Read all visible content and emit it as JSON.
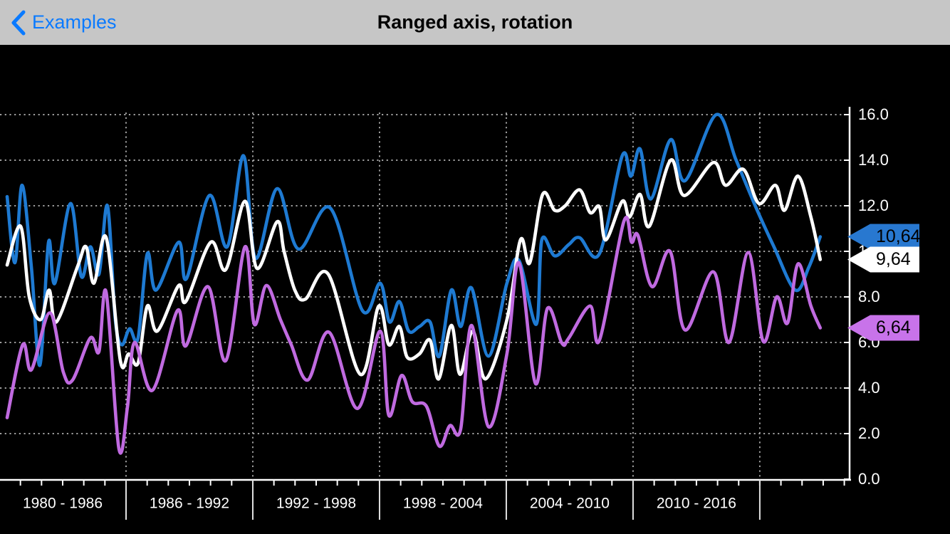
{
  "nav": {
    "back_label": "Examples",
    "title": "Ranged axis, rotation"
  },
  "colors": {
    "nav_background": "#c6c6c6",
    "nav_accent_blue": "#0a7aff",
    "nav_title_color": "#000000",
    "chart_background": "#000000",
    "gridline": "#b5b5b5",
    "axis_line": "#ffffff",
    "axis_text": "#ffffff",
    "band_separator": "#e0e0e0",
    "marker_text": "#000000",
    "series_blue": "#1e7ad2",
    "series_white": "#ffffff",
    "series_purple": "#c06ae0",
    "marker_blue_fill": "#2878d0",
    "marker_white_fill": "#ffffff",
    "marker_purple_fill": "#c873ea"
  },
  "chart_data": {
    "type": "line",
    "title": "",
    "xlabel": "",
    "ylabel": "",
    "grid": true,
    "legend_position": "none",
    "x_axis": {
      "range": [
        1980,
        2020.25
      ],
      "band_boundaries": [
        1986,
        1992,
        1998,
        2004,
        2010,
        2016
      ],
      "band_labels": [
        "1980 - 1986",
        "1986 - 1992",
        "1992 - 1998",
        "1998 - 2004",
        "2004 - 2010",
        "2010 - 2016"
      ],
      "band_label_years": [
        1983,
        1989,
        1995,
        2001,
        2007,
        2013
      ],
      "minor_tick_step_years": 1
    },
    "y_axis": {
      "range": [
        0,
        16
      ],
      "tick_step": 2,
      "tick_labels": [
        "16.0",
        "14.0",
        "12.0",
        "10.0",
        "8.0",
        "6.0",
        "4.0",
        "2.0",
        "0.0"
      ],
      "tick_values": [
        16,
        14,
        12,
        10,
        8,
        6,
        4,
        2,
        0
      ],
      "side": "right"
    },
    "annotations": [
      {
        "series": "blue",
        "label": "10,64",
        "value": 10.64
      },
      {
        "series": "white",
        "label": "9,64",
        "value": 9.64
      },
      {
        "series": "purple",
        "label": "6,64",
        "value": 6.64
      }
    ],
    "series": [
      {
        "name": "blue",
        "points": [
          [
            1980.37,
            12.4
          ],
          [
            1980.74,
            9.5
          ],
          [
            1981.08,
            12.9
          ],
          [
            1981.52,
            9.3
          ],
          [
            1981.92,
            5.0
          ],
          [
            1982.33,
            10.4
          ],
          [
            1982.63,
            8.6
          ],
          [
            1983.37,
            12.1
          ],
          [
            1983.88,
            8.9
          ],
          [
            1984.31,
            10.2
          ],
          [
            1984.72,
            9.0
          ],
          [
            1985.12,
            12.0
          ],
          [
            1985.49,
            7.0
          ],
          [
            1985.8,
            5.9
          ],
          [
            1986.17,
            6.6
          ],
          [
            1986.57,
            6.2
          ],
          [
            1987.01,
            9.9
          ],
          [
            1987.42,
            8.3
          ],
          [
            1988.49,
            10.4
          ],
          [
            1988.86,
            8.8
          ],
          [
            1989.94,
            12.45
          ],
          [
            1990.79,
            10.2
          ],
          [
            1991.56,
            14.2
          ],
          [
            1992.13,
            9.7
          ],
          [
            1993.15,
            12.75
          ],
          [
            1994.16,
            10.1
          ],
          [
            1995.67,
            11.9
          ],
          [
            1997.19,
            7.4
          ],
          [
            1998.03,
            8.6
          ],
          [
            1998.47,
            6.9
          ],
          [
            1998.94,
            7.8
          ],
          [
            1999.38,
            6.5
          ],
          [
            1999.89,
            6.7
          ],
          [
            2000.39,
            6.9
          ],
          [
            2000.83,
            5.4
          ],
          [
            2001.4,
            8.3
          ],
          [
            2001.84,
            6.7
          ],
          [
            2002.35,
            8.4
          ],
          [
            2003.16,
            5.4
          ],
          [
            2004.03,
            8.6
          ],
          [
            2004.6,
            9.6
          ],
          [
            2005.42,
            6.8
          ],
          [
            2005.68,
            10.5
          ],
          [
            2006.29,
            9.8
          ],
          [
            2006.96,
            10.3
          ],
          [
            2007.47,
            10.6
          ],
          [
            2008.41,
            9.9
          ],
          [
            2009.49,
            14.2
          ],
          [
            2009.9,
            13.3
          ],
          [
            2010.33,
            14.5
          ],
          [
            2010.84,
            12.3
          ],
          [
            2011.78,
            14.9
          ],
          [
            2012.46,
            13.1
          ],
          [
            2013.94,
            16.0
          ],
          [
            2014.88,
            14.0
          ],
          [
            2015.83,
            11.9
          ],
          [
            2016.67,
            10.2
          ],
          [
            2017.68,
            8.3
          ],
          [
            2018.32,
            9.3
          ],
          [
            2018.86,
            10.64
          ]
        ]
      },
      {
        "name": "white",
        "points": [
          [
            1980.37,
            9.4
          ],
          [
            1981.01,
            11.1
          ],
          [
            1981.42,
            8.0
          ],
          [
            1981.96,
            7.0
          ],
          [
            1982.36,
            8.3
          ],
          [
            1982.7,
            6.9
          ],
          [
            1983.71,
            9.35
          ],
          [
            1984.11,
            10.2
          ],
          [
            1984.48,
            8.6
          ],
          [
            1985.06,
            10.6
          ],
          [
            1985.73,
            5.2
          ],
          [
            1986.13,
            5.5
          ],
          [
            1986.57,
            5.1
          ],
          [
            1987.01,
            7.6
          ],
          [
            1987.48,
            6.5
          ],
          [
            1988.49,
            8.5
          ],
          [
            1988.83,
            7.8
          ],
          [
            1990.01,
            10.4
          ],
          [
            1990.72,
            9.2
          ],
          [
            1991.63,
            12.2
          ],
          [
            1992.2,
            9.25
          ],
          [
            1993.15,
            11.3
          ],
          [
            1993.48,
            10.0
          ],
          [
            1993.99,
            8.3
          ],
          [
            1994.49,
            7.9
          ],
          [
            1995.57,
            9.0
          ],
          [
            1997.09,
            4.6
          ],
          [
            1997.96,
            7.6
          ],
          [
            1998.44,
            5.9
          ],
          [
            1998.94,
            6.7
          ],
          [
            1999.31,
            5.35
          ],
          [
            1999.89,
            5.5
          ],
          [
            2000.39,
            6.1
          ],
          [
            2000.8,
            4.4
          ],
          [
            2001.4,
            6.75
          ],
          [
            2001.81,
            4.6
          ],
          [
            2002.41,
            6.5
          ],
          [
            2003.02,
            4.4
          ],
          [
            2004.03,
            7.0
          ],
          [
            2004.67,
            10.5
          ],
          [
            2005.11,
            9.5
          ],
          [
            2005.72,
            12.5
          ],
          [
            2006.29,
            11.8
          ],
          [
            2006.79,
            12.0
          ],
          [
            2007.47,
            12.7
          ],
          [
            2007.97,
            11.7
          ],
          [
            2008.41,
            11.95
          ],
          [
            2008.71,
            10.5
          ],
          [
            2009.49,
            12.2
          ],
          [
            2009.83,
            11.5
          ],
          [
            2010.33,
            12.5
          ],
          [
            2010.77,
            11.1
          ],
          [
            2011.78,
            14.0
          ],
          [
            2012.42,
            12.45
          ],
          [
            2013.8,
            13.9
          ],
          [
            2014.38,
            12.9
          ],
          [
            2015.22,
            13.6
          ],
          [
            2015.96,
            12.1
          ],
          [
            2016.74,
            12.9
          ],
          [
            2017.17,
            11.8
          ],
          [
            2017.81,
            13.3
          ],
          [
            2018.42,
            11.5
          ],
          [
            2018.86,
            9.64
          ]
        ]
      },
      {
        "name": "purple",
        "points": [
          [
            1980.37,
            2.7
          ],
          [
            1981.11,
            5.9
          ],
          [
            1981.52,
            4.8
          ],
          [
            1982.39,
            7.3
          ],
          [
            1983.03,
            4.7
          ],
          [
            1983.47,
            4.35
          ],
          [
            1984.31,
            6.2
          ],
          [
            1984.72,
            5.6
          ],
          [
            1985.06,
            8.2
          ],
          [
            1985.66,
            1.35
          ],
          [
            1986.07,
            3.2
          ],
          [
            1986.4,
            6.0
          ],
          [
            1987.25,
            3.9
          ],
          [
            1988.43,
            7.4
          ],
          [
            1988.83,
            5.85
          ],
          [
            1989.88,
            8.45
          ],
          [
            1990.72,
            5.2
          ],
          [
            1991.63,
            10.2
          ],
          [
            1992.07,
            6.8
          ],
          [
            1992.64,
            8.5
          ],
          [
            1993.31,
            7.0
          ],
          [
            1993.82,
            5.9
          ],
          [
            1994.6,
            4.35
          ],
          [
            1995.61,
            6.45
          ],
          [
            1996.95,
            3.1
          ],
          [
            1998.03,
            6.5
          ],
          [
            1998.44,
            2.8
          ],
          [
            1999.04,
            4.55
          ],
          [
            1999.55,
            3.4
          ],
          [
            2000.22,
            3.2
          ],
          [
            2000.83,
            1.45
          ],
          [
            2001.33,
            2.35
          ],
          [
            2001.84,
            2.2
          ],
          [
            2002.35,
            6.75
          ],
          [
            2003.16,
            2.3
          ],
          [
            2004.03,
            5.5
          ],
          [
            2004.6,
            9.5
          ],
          [
            2005.38,
            4.2
          ],
          [
            2005.95,
            7.5
          ],
          [
            2006.63,
            5.97
          ],
          [
            2006.96,
            6.2
          ],
          [
            2007.97,
            7.6
          ],
          [
            2008.41,
            6.1
          ],
          [
            2009.56,
            11.3
          ],
          [
            2009.93,
            10.4
          ],
          [
            2010.23,
            10.7
          ],
          [
            2010.9,
            8.45
          ],
          [
            2011.75,
            10.0
          ],
          [
            2012.46,
            6.55
          ],
          [
            2013.8,
            9.1
          ],
          [
            2014.54,
            6.0
          ],
          [
            2015.45,
            9.95
          ],
          [
            2016.16,
            6.05
          ],
          [
            2016.8,
            8.0
          ],
          [
            2017.31,
            6.85
          ],
          [
            2017.81,
            9.45
          ],
          [
            2018.42,
            7.6
          ],
          [
            2018.86,
            6.64
          ]
        ]
      }
    ]
  }
}
